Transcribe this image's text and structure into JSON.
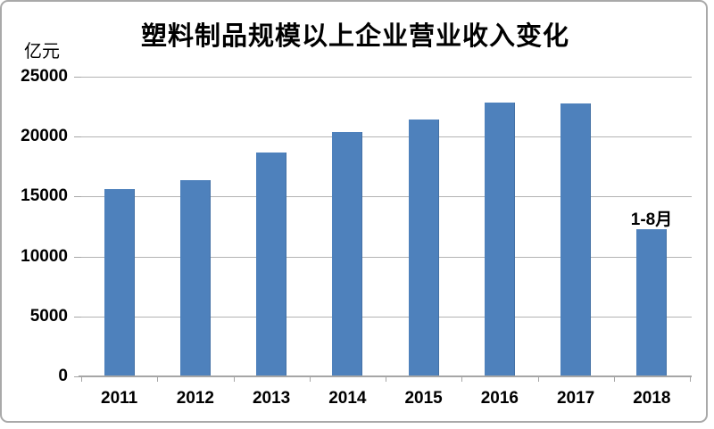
{
  "chart_data": {
    "type": "bar",
    "title": "塑料制品规模以上企业营业收入变化",
    "unit": "亿元",
    "categories": [
      "2011",
      "2012",
      "2013",
      "2014",
      "2015",
      "2016",
      "2017",
      "2018"
    ],
    "values": [
      15657,
      16398,
      18686,
      20403,
      21462,
      22855,
      22798,
      12272
    ],
    "annotation": {
      "text": "1-8月",
      "category": "2018"
    },
    "ylim": [
      0,
      25000
    ],
    "ytick_interval": 5000,
    "ytick_labels": [
      "25000",
      "20000",
      "15000",
      "10000",
      "5000",
      "0"
    ],
    "grid": "horizontal",
    "legend": "none",
    "colors": {
      "bar": "#4e81bc",
      "gridline": "#b3b3b3",
      "axis": "#a6a6a6",
      "text": "#000000",
      "frame_border": "#a9a9a9",
      "background": "#ffffff"
    }
  }
}
